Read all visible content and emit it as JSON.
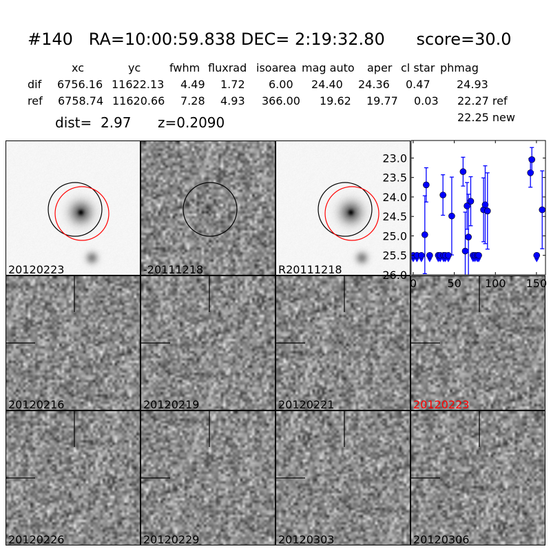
{
  "header": {
    "title": "#140   RA=10:00:59.838 DEC= 2:19:32.80      score=30.0"
  },
  "table": {
    "columns": [
      "xc",
      "yc",
      "fwhm",
      "fluxrad",
      "isoarea",
      "mag auto",
      "aper",
      "cl star",
      "phmag"
    ],
    "rows": [
      {
        "label": "dif",
        "values": [
          "6756.16",
          "11622.13",
          "4.49",
          "1.72",
          "6.00",
          "24.40",
          "24.36",
          "0.47",
          "24.93"
        ]
      },
      {
        "label": "ref",
        "values": [
          "6758.74",
          "11620.66",
          "7.28",
          "4.93",
          "366.00",
          "19.62",
          "19.77",
          "0.03",
          "22.27 ref"
        ]
      }
    ],
    "extra_phmag": "22.25 new",
    "dist": "dist=  2.97",
    "z": "z=0.2090"
  },
  "panels": [
    {
      "label": "20120223",
      "kind": "galaxy",
      "circles": [
        "black",
        "red"
      ]
    },
    {
      "label": "-20111218",
      "kind": "diff",
      "circles": [
        "black"
      ]
    },
    {
      "label": "R20111218",
      "kind": "galaxy",
      "circles": [
        "black",
        "red"
      ]
    },
    {
      "label": "20120216",
      "kind": "noise"
    },
    {
      "label": "20120219",
      "kind": "noise"
    },
    {
      "label": "20120221",
      "kind": "noise"
    },
    {
      "label": "20120223",
      "kind": "noise",
      "label_color": "#ff0000"
    },
    {
      "label": "20120226",
      "kind": "noise"
    },
    {
      "label": "20120229",
      "kind": "noise"
    },
    {
      "label": "20120303",
      "kind": "noise"
    },
    {
      "label": "20120306",
      "kind": "noise"
    }
  ],
  "chart_data": {
    "type": "scatter",
    "xlim": [
      -2.5,
      161
    ],
    "ylim": [
      26.0,
      22.55
    ],
    "y_inverted": true,
    "xticks": [
      "0",
      "50",
      "100",
      "150"
    ],
    "yticks": [
      "23.0",
      "23.5",
      "24.0",
      "24.5",
      "25.0",
      "25.5",
      "26.0"
    ],
    "color": "#0000ff",
    "detections": [
      {
        "x": 14.1,
        "y": 24.97,
        "err": 1.0
      },
      {
        "x": 15.8,
        "y": 23.69,
        "err": 0.44
      },
      {
        "x": 36.2,
        "y": 23.95,
        "err": 0.52
      },
      {
        "x": 46.9,
        "y": 24.49,
        "err": 1.0
      },
      {
        "x": 60.7,
        "y": 23.35,
        "err": 0.37
      },
      {
        "x": 63.3,
        "y": 25.39,
        "err": 1.0
      },
      {
        "x": 65.5,
        "y": 24.23,
        "err": 0.6
      },
      {
        "x": 67.2,
        "y": 25.03,
        "err": 1.1
      },
      {
        "x": 70.0,
        "y": 24.11,
        "err": 0.63
      },
      {
        "x": 85.6,
        "y": 24.33,
        "err": 0.82
      },
      {
        "x": 87.6,
        "y": 24.2,
        "err": 1.0
      },
      {
        "x": 90.4,
        "y": 24.36,
        "err": 0.98
      },
      {
        "x": 142.7,
        "y": 23.38,
        "err": 0.37
      },
      {
        "x": 144.4,
        "y": 23.04,
        "err": 0.31
      },
      {
        "x": 157.0,
        "y": 24.33,
        "err": 1.0
      }
    ],
    "upper_limits": [
      {
        "x": 0.0,
        "y": 25.5
      },
      {
        "x": 4.5,
        "y": 25.5
      },
      {
        "x": 9.9,
        "y": 25.5
      },
      {
        "x": 20.0,
        "y": 25.5
      },
      {
        "x": 30.5,
        "y": 25.5
      },
      {
        "x": 32.8,
        "y": 25.5
      },
      {
        "x": 37.0,
        "y": 25.5
      },
      {
        "x": 39.0,
        "y": 25.5
      },
      {
        "x": 42.7,
        "y": 25.5
      },
      {
        "x": 72.9,
        "y": 25.5
      },
      {
        "x": 75.1,
        "y": 25.5
      },
      {
        "x": 78.0,
        "y": 25.5
      },
      {
        "x": 79.7,
        "y": 25.5
      },
      {
        "x": 150.3,
        "y": 25.5
      }
    ]
  }
}
